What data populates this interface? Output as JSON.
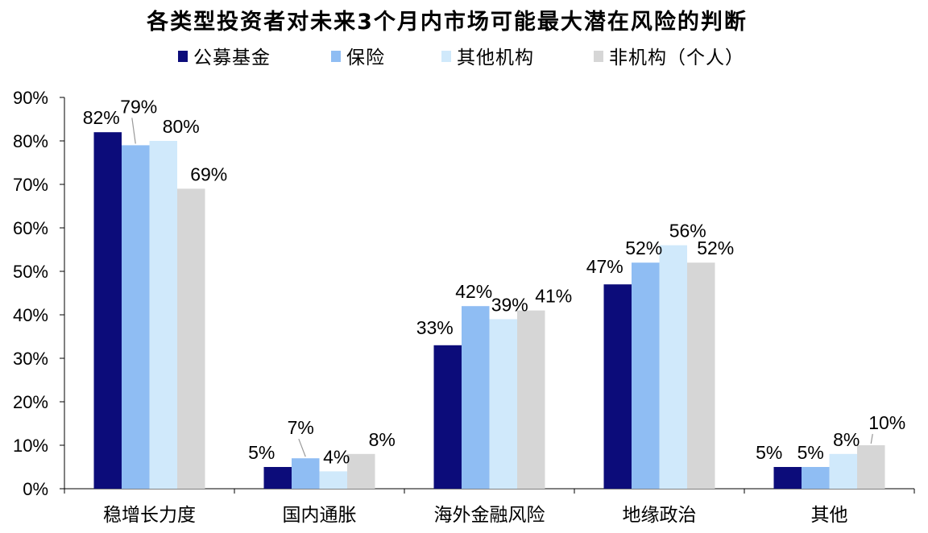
{
  "chart_data": {
    "type": "bar",
    "title": "各类型投资者对未来3个月内市场可能最大潜在风险的判断",
    "categories": [
      "稳增长力度",
      "国内通胀",
      "海外金融风险",
      "地缘政治",
      "其他"
    ],
    "series": [
      {
        "name": "公募基金",
        "color": "#0c0c7a",
        "values": [
          82,
          5,
          33,
          47,
          5
        ]
      },
      {
        "name": "保险",
        "color": "#8fbdf3",
        "values": [
          79,
          7,
          42,
          52,
          5
        ]
      },
      {
        "name": "其他机构",
        "color": "#d0e9fb",
        "values": [
          80,
          4,
          39,
          56,
          8
        ]
      },
      {
        "name": "非机构（个人）",
        "color": "#d6d6d6",
        "values": [
          69,
          8,
          41,
          52,
          10
        ]
      }
    ],
    "ylim": [
      0,
      90
    ],
    "yticks": [
      "0%",
      "10%",
      "20%",
      "30%",
      "40%",
      "50%",
      "60%",
      "70%",
      "80%",
      "90%"
    ],
    "value_suffix": "%",
    "legend_position": "top",
    "grid": false,
    "xlabel": "",
    "ylabel": ""
  }
}
